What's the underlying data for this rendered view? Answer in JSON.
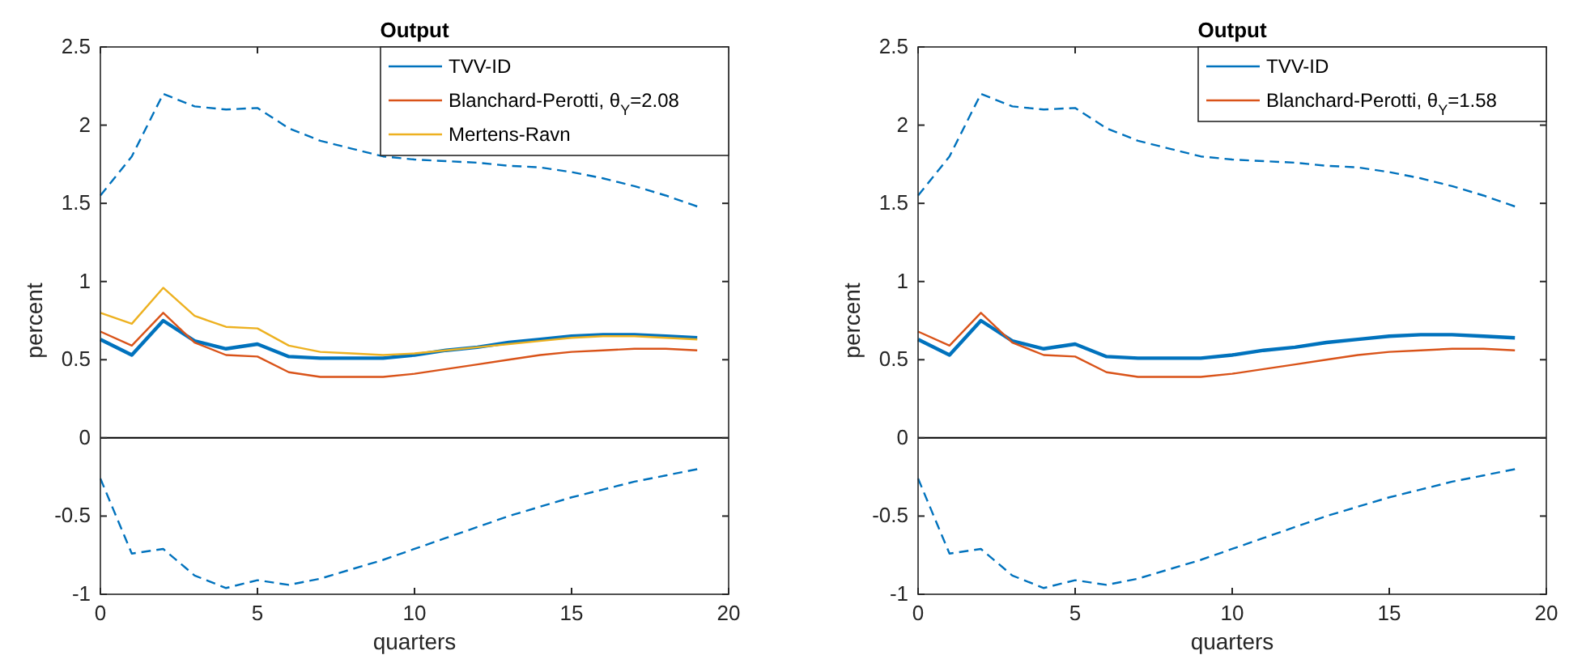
{
  "chart_data": [
    {
      "type": "line",
      "title": "Output",
      "xlabel": "quarters",
      "ylabel": "percent",
      "x": [
        0,
        1,
        2,
        3,
        4,
        5,
        6,
        7,
        8,
        9,
        10,
        11,
        12,
        13,
        14,
        15,
        16,
        17,
        18,
        19
      ],
      "xlim": [
        0,
        20
      ],
      "xticks": [
        0,
        5,
        10,
        15,
        20
      ],
      "ylim": [
        -1,
        2.5
      ],
      "yticks": [
        -1,
        -0.5,
        0,
        0.5,
        1,
        1.5,
        2,
        2.5
      ],
      "grid": false,
      "legend": "top right",
      "ref_lines": [
        {
          "axis": "y",
          "value": 0,
          "color": "#000000"
        }
      ],
      "series": [
        {
          "name": "TVV-ID",
          "color": "#0072bd",
          "values": [
            0.63,
            0.53,
            0.75,
            0.62,
            0.57,
            0.6,
            0.52,
            0.51,
            0.51,
            0.51,
            0.53,
            0.56,
            0.58,
            0.61,
            0.63,
            0.65,
            0.66,
            0.66,
            0.65,
            0.64
          ]
        },
        {
          "name": "Blanchard-Perotti, θ$_{Y}$=2.08",
          "color": "#d95319",
          "values": [
            0.68,
            0.59,
            0.8,
            0.61,
            0.53,
            0.52,
            0.42,
            0.39,
            0.39,
            0.39,
            0.41,
            0.44,
            0.47,
            0.5,
            0.53,
            0.55,
            0.56,
            0.57,
            0.57,
            0.56
          ]
        },
        {
          "name": "Mertens-Ravn",
          "color": "#edb120",
          "values": [
            0.8,
            0.73,
            0.96,
            0.78,
            0.71,
            0.7,
            0.59,
            0.55,
            0.54,
            0.53,
            0.54,
            0.56,
            0.58,
            0.6,
            0.62,
            0.64,
            0.65,
            0.65,
            0.64,
            0.63
          ]
        },
        {
          "color": "#0072bd",
          "line_style": "dashed",
          "values": [
            1.55,
            1.8,
            2.2,
            2.12,
            2.1,
            2.11,
            1.98,
            1.9,
            1.85,
            1.8,
            1.78,
            1.77,
            1.76,
            1.74,
            1.73,
            1.7,
            1.66,
            1.61,
            1.55,
            1.48
          ]
        },
        {
          "color": "#0072bd",
          "line_style": "dashed",
          "values": [
            -0.26,
            -0.74,
            -0.71,
            -0.88,
            -0.96,
            -0.91,
            -0.94,
            -0.9,
            -0.84,
            -0.78,
            -0.71,
            -0.64,
            -0.57,
            -0.5,
            -0.44,
            -0.38,
            -0.33,
            -0.28,
            -0.24,
            -0.2
          ]
        }
      ]
    },
    {
      "type": "line",
      "title": "Output",
      "xlabel": "quarters",
      "ylabel": "percent",
      "x": [
        0,
        1,
        2,
        3,
        4,
        5,
        6,
        7,
        8,
        9,
        10,
        11,
        12,
        13,
        14,
        15,
        16,
        17,
        18,
        19
      ],
      "xlim": [
        0,
        20
      ],
      "xticks": [
        0,
        5,
        10,
        15,
        20
      ],
      "ylim": [
        -1,
        2.5
      ],
      "yticks": [
        -1,
        -0.5,
        0,
        0.5,
        1,
        1.5,
        2,
        2.5
      ],
      "grid": false,
      "legend": "top right",
      "ref_lines": [
        {
          "axis": "y",
          "value": 0,
          "color": "#000000"
        }
      ],
      "series": [
        {
          "name": "TVV-ID",
          "color": "#0072bd",
          "values": [
            0.63,
            0.53,
            0.75,
            0.62,
            0.57,
            0.6,
            0.52,
            0.51,
            0.51,
            0.51,
            0.53,
            0.56,
            0.58,
            0.61,
            0.63,
            0.65,
            0.66,
            0.66,
            0.65,
            0.64
          ]
        },
        {
          "name": "Blanchard-Perotti, θ$_{Y}$=1.58",
          "color": "#d95319",
          "values": [
            0.68,
            0.59,
            0.8,
            0.61,
            0.53,
            0.52,
            0.42,
            0.39,
            0.39,
            0.39,
            0.41,
            0.44,
            0.47,
            0.5,
            0.53,
            0.55,
            0.56,
            0.57,
            0.57,
            0.56
          ]
        },
        {
          "color": "#0072bd",
          "line_style": "dashed",
          "values": [
            1.55,
            1.8,
            2.2,
            2.12,
            2.1,
            2.11,
            1.98,
            1.9,
            1.85,
            1.8,
            1.78,
            1.77,
            1.76,
            1.74,
            1.73,
            1.7,
            1.66,
            1.61,
            1.55,
            1.48
          ]
        },
        {
          "color": "#0072bd",
          "line_style": "dashed",
          "values": [
            -0.26,
            -0.74,
            -0.71,
            -0.88,
            -0.96,
            -0.91,
            -0.94,
            -0.9,
            -0.84,
            -0.78,
            -0.71,
            -0.64,
            -0.57,
            -0.5,
            -0.44,
            -0.38,
            -0.33,
            -0.28,
            -0.24,
            -0.2
          ]
        }
      ]
    }
  ]
}
